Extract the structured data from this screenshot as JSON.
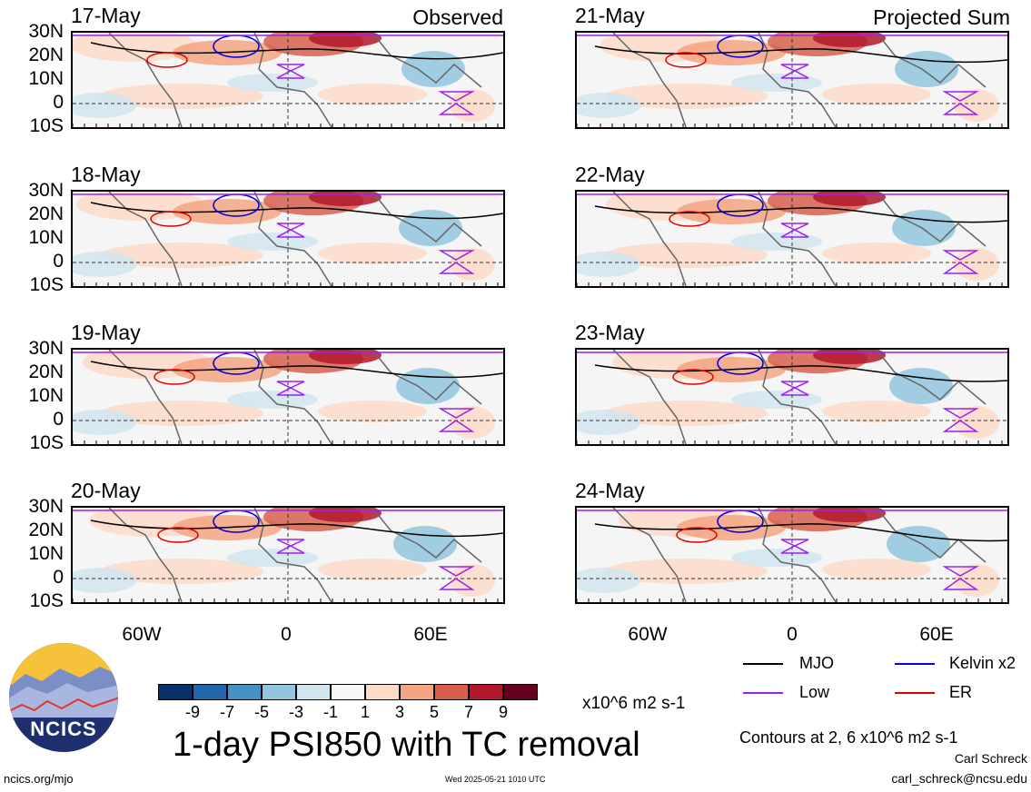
{
  "colors": {
    "mjo": "#000000",
    "kelvin": "#0000dd",
    "low": "#a020f0",
    "er": "#e00000",
    "scale": [
      "#08306b",
      "#2166ac",
      "#4393c3",
      "#92c5de",
      "#d1e5f0",
      "#f7f7f7",
      "#fddbc7",
      "#f4a582",
      "#d6604d",
      "#b2182b",
      "#67001f"
    ]
  },
  "panels": {
    "left": [
      {
        "date": "17-May",
        "tag": "Observed"
      },
      {
        "date": "18-May",
        "tag": ""
      },
      {
        "date": "19-May",
        "tag": ""
      },
      {
        "date": "20-May",
        "tag": ""
      }
    ],
    "right": [
      {
        "date": "21-May",
        "tag": "Projected Sum"
      },
      {
        "date": "22-May",
        "tag": ""
      },
      {
        "date": "23-May",
        "tag": ""
      },
      {
        "date": "24-May",
        "tag": ""
      }
    ]
  },
  "axes": {
    "lat_labels": [
      "30N",
      "20N",
      "10N",
      "0",
      "10S"
    ],
    "lon_labels": [
      "60W",
      "0",
      "60E"
    ]
  },
  "legend": {
    "mjo": "MJO",
    "kelvin": "Kelvin x2",
    "low": "Low",
    "er": "ER",
    "contours": "Contours at 2, 6 x10^6 m2 s-1"
  },
  "colorbar": {
    "labels": [
      "-9",
      "-7",
      "-5",
      "-3",
      "-1",
      "1",
      "3",
      "5",
      "7",
      "9"
    ],
    "units": "x10^6 m2 s-1"
  },
  "footer": {
    "title": "1-day PSI850 with TC removal",
    "logo_text": "NCICS",
    "url": "ncics.org/mjo",
    "timestamp": "Wed 2025-05-21 1010 UTC",
    "author": "Carl Schreck",
    "email": "carl_schreck@ncsu.edu"
  }
}
